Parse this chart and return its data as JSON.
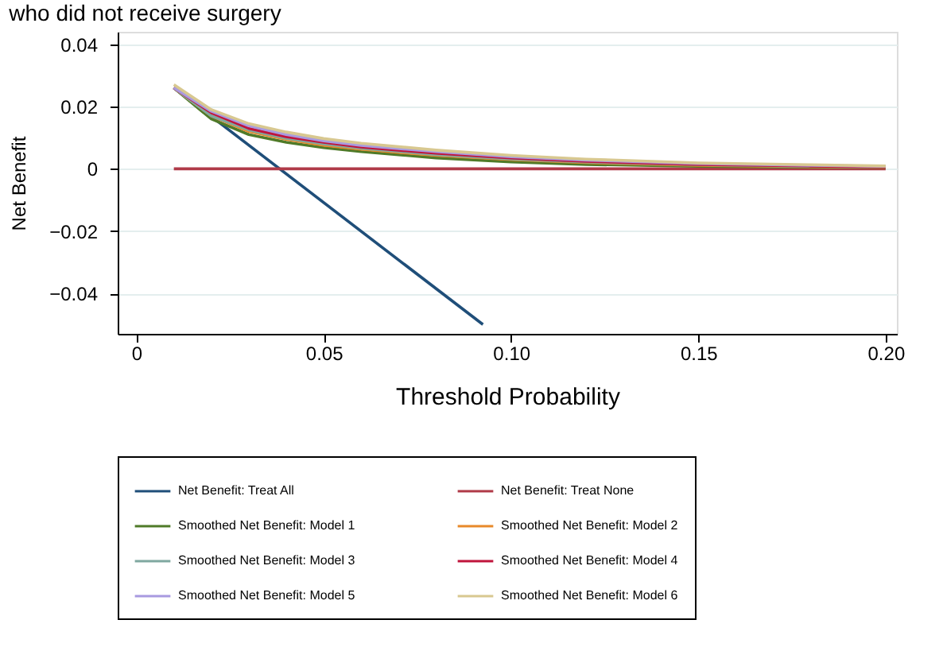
{
  "chart_data": {
    "type": "line",
    "title": "who did not receive surgery",
    "xlabel": "Threshold Probability",
    "ylabel": "Net Benefit",
    "xlim": [
      -0.005,
      0.203
    ],
    "ylim": [
      -0.053,
      0.044
    ],
    "xticks": [
      0,
      0.05,
      {
        "value": 0.1,
        "label": "0.10"
      },
      0.15,
      {
        "value": 0.2,
        "label": "0.20"
      }
    ],
    "yticks": [
      -0.04,
      -0.02,
      0,
      0.02,
      0.04
    ],
    "grid": "y",
    "legend": "bottom",
    "marker": "none",
    "line_style": "solid",
    "series": [
      {
        "name": "Net Benefit: Treat All",
        "color": "#1f4e79",
        "x": [
          0.01,
          0.0925
        ],
        "values": [
          0.026,
          -0.05
        ]
      },
      {
        "name": "Net Benefit: Treat None",
        "color": "#b03a48",
        "x": [
          0.01,
          0.2
        ],
        "values": [
          0,
          0
        ]
      },
      {
        "name": "Smoothed Net Benefit: Model 1",
        "color": "#4f7a28",
        "x": [
          0.01,
          0.02,
          0.03,
          0.04,
          0.05,
          0.06,
          0.08,
          0.1,
          0.12,
          0.15,
          0.18,
          0.2
        ],
        "values": [
          0.026,
          0.016,
          0.011,
          0.0085,
          0.0068,
          0.0055,
          0.0035,
          0.0022,
          0.0014,
          0.0008,
          0.0005,
          0.0004
        ]
      },
      {
        "name": "Smoothed Net Benefit: Model 2",
        "color": "#e8892a",
        "x": [
          0.01,
          0.02,
          0.03,
          0.04,
          0.05,
          0.06,
          0.08,
          0.1,
          0.12,
          0.15,
          0.18,
          0.2
        ],
        "values": [
          0.026,
          0.017,
          0.012,
          0.0095,
          0.0076,
          0.0063,
          0.0043,
          0.003,
          0.002,
          0.0011,
          0.0007,
          0.0005
        ]
      },
      {
        "name": "Smoothed Net Benefit: Model 3",
        "color": "#7fa8a0",
        "x": [
          0.01,
          0.02,
          0.03,
          0.04,
          0.05,
          0.06,
          0.08,
          0.1,
          0.12,
          0.15,
          0.18,
          0.2
        ],
        "values": [
          0.026,
          0.017,
          0.0125,
          0.0098,
          0.008,
          0.0066,
          0.0046,
          0.0032,
          0.0022,
          0.0013,
          0.0008,
          0.0006
        ]
      },
      {
        "name": "Smoothed Net Benefit: Model 4",
        "color": "#c0143c",
        "x": [
          0.01,
          0.02,
          0.03,
          0.04,
          0.05,
          0.06,
          0.08,
          0.1,
          0.12,
          0.15,
          0.18,
          0.2
        ],
        "values": [
          0.026,
          0.018,
          0.013,
          0.0103,
          0.0085,
          0.007,
          0.005,
          0.0035,
          0.0024,
          0.0014,
          0.0009,
          0.0006
        ]
      },
      {
        "name": "Smoothed Net Benefit: Model 5",
        "color": "#a89ae0",
        "x": [
          0.01,
          0.02,
          0.03,
          0.04,
          0.05,
          0.06,
          0.08,
          0.1,
          0.12,
          0.15,
          0.18,
          0.2
        ],
        "values": [
          0.026,
          0.0185,
          0.0138,
          0.011,
          0.009,
          0.0075,
          0.0055,
          0.0039,
          0.0028,
          0.0017,
          0.0011,
          0.0008
        ]
      },
      {
        "name": "Smoothed Net Benefit: Model 6",
        "color": "#d8c890",
        "x": [
          0.01,
          0.02,
          0.03,
          0.04,
          0.05,
          0.06,
          0.08,
          0.1,
          0.12,
          0.15,
          0.18,
          0.2
        ],
        "values": [
          0.027,
          0.019,
          0.0145,
          0.0118,
          0.0097,
          0.0082,
          0.006,
          0.0043,
          0.0031,
          0.0019,
          0.0013,
          0.0009
        ]
      }
    ]
  }
}
